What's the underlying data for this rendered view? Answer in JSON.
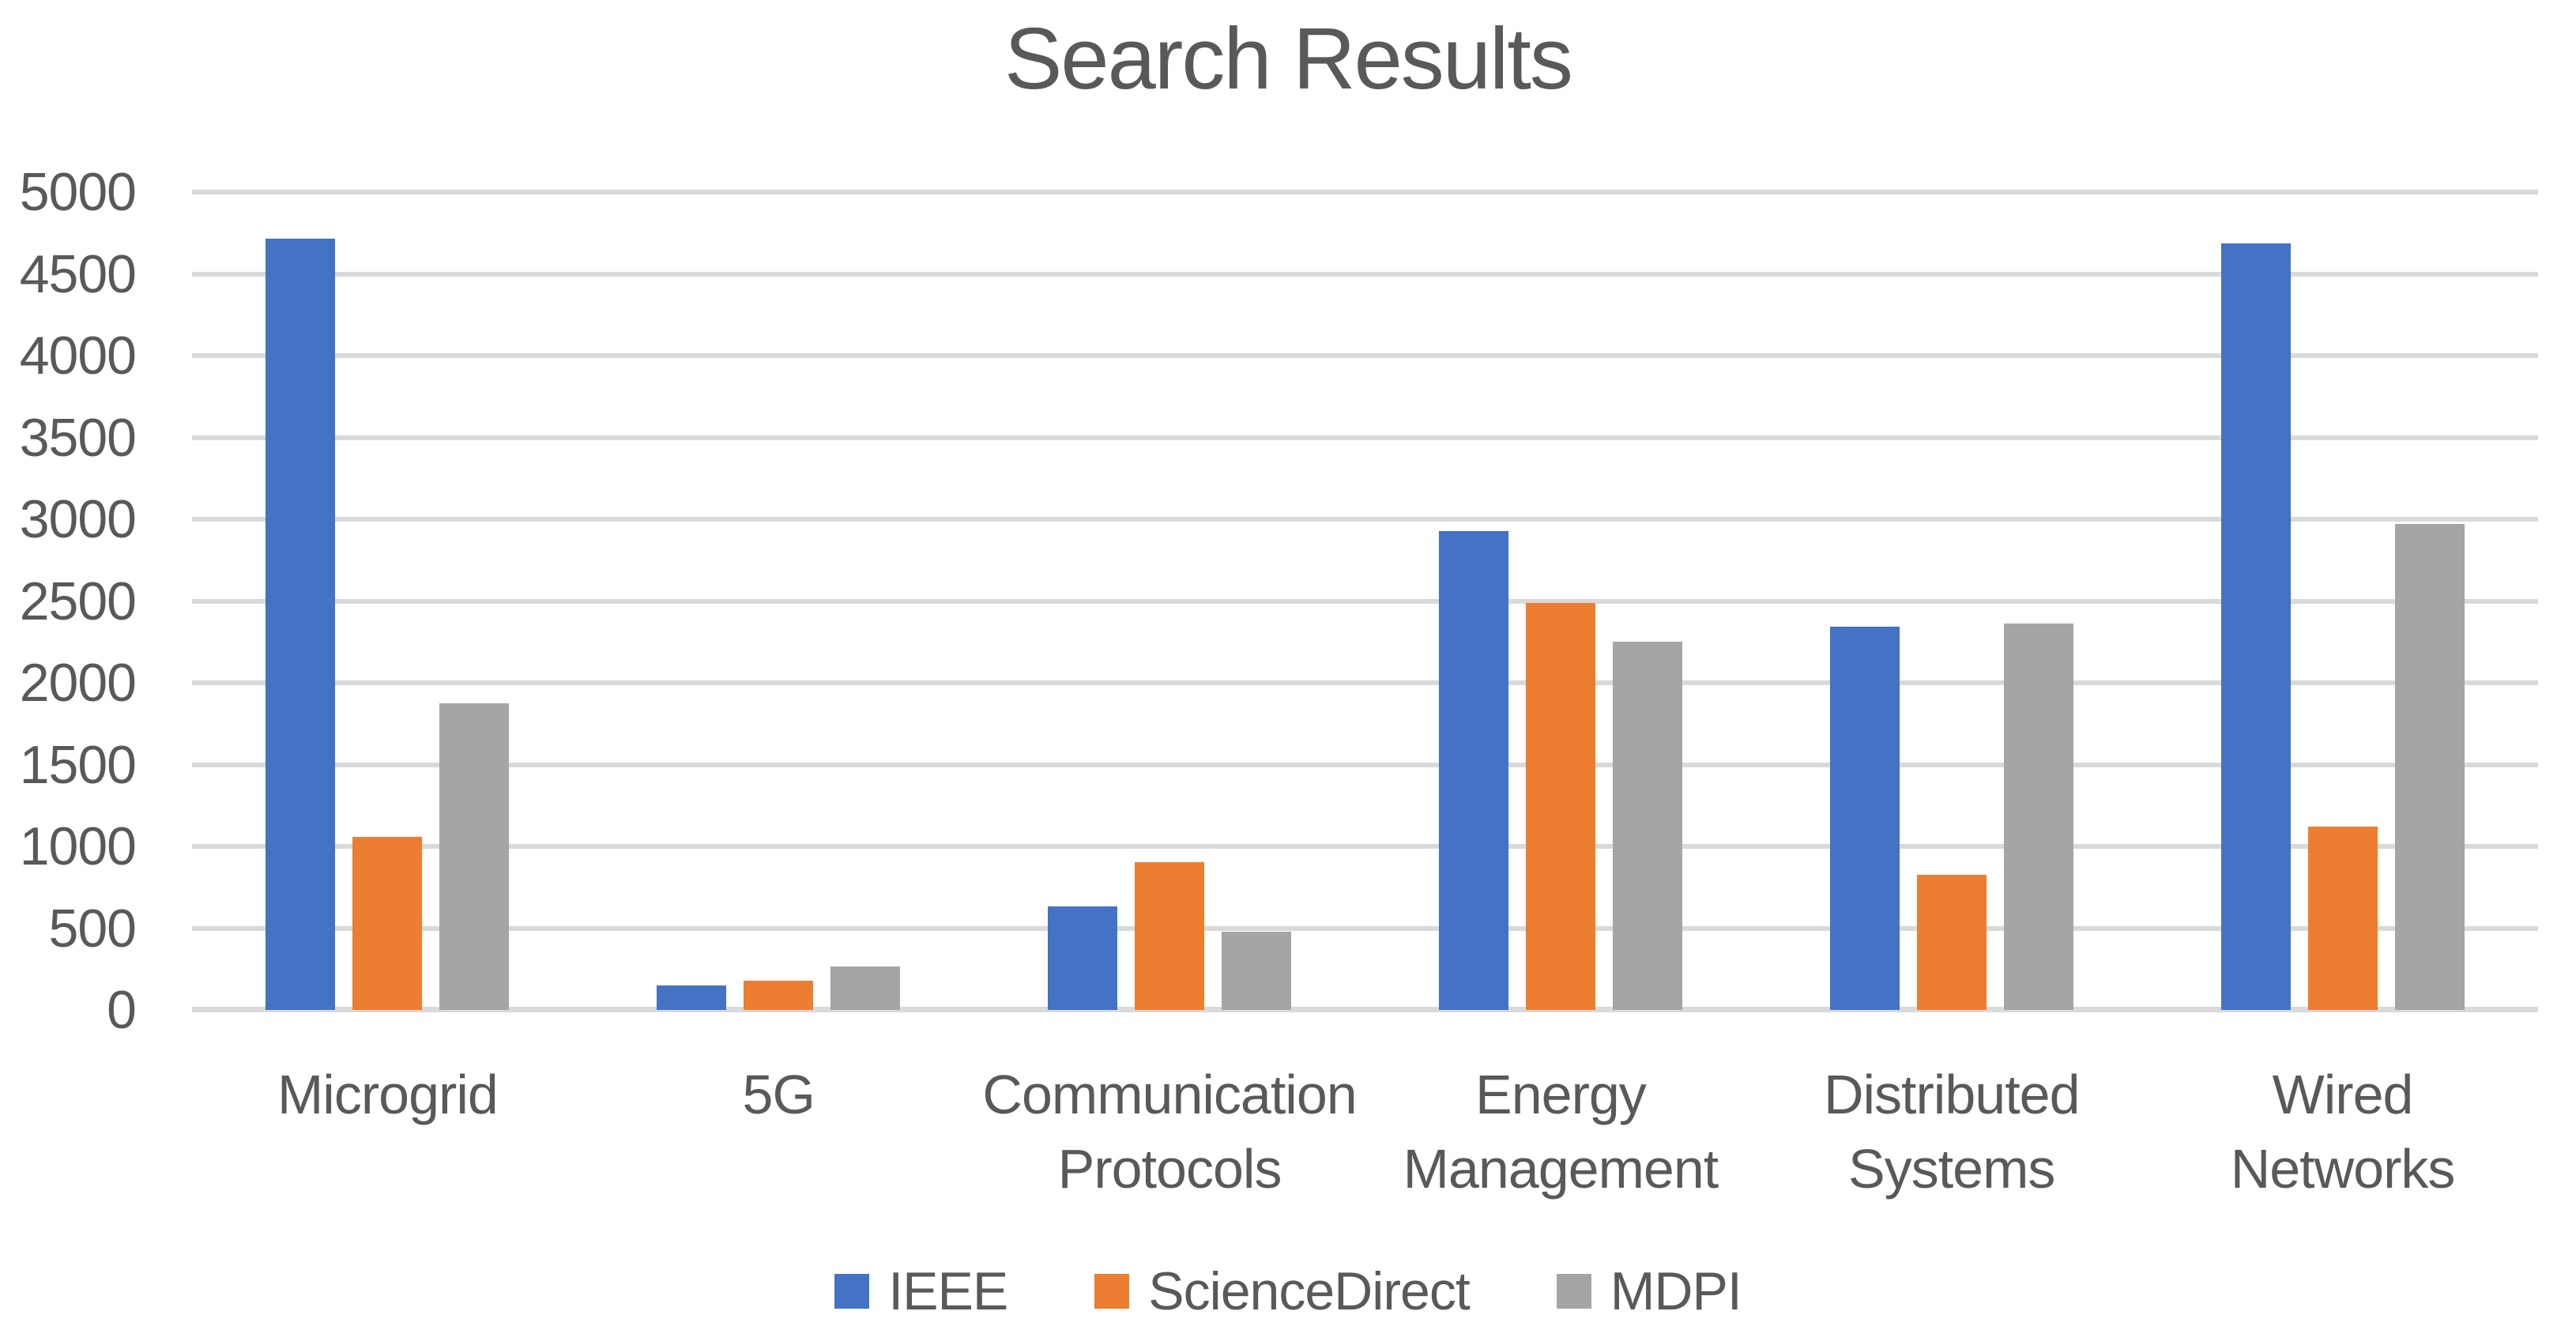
{
  "title": "Search Results",
  "colors": {
    "text": "#595959",
    "gridline": "#D9D9D9",
    "background": "#FFFFFF"
  },
  "chart_data": {
    "type": "bar",
    "title": "Search Results",
    "categories": [
      "Microgrid",
      "5G",
      "Communication Protocols",
      "Energy Management",
      "Distributed Systems",
      "Wired Networks"
    ],
    "series": [
      {
        "name": "IEEE",
        "color": "#4472C4",
        "values": [
          4715,
          150,
          635,
          2930,
          2345,
          4685
        ]
      },
      {
        "name": "ScienceDirect",
        "color": "#ED7D31",
        "values": [
          1060,
          180,
          905,
          2490,
          825,
          1120
        ]
      },
      {
        "name": "MDPI",
        "color": "#A5A5A5",
        "values": [
          1875,
          265,
          480,
          2250,
          2360,
          2970
        ]
      }
    ],
    "xlabel": "",
    "ylabel": "",
    "ylim": [
      0,
      5000
    ],
    "ytick_step": 500,
    "ytick_labels": [
      "0",
      "500",
      "1000",
      "1500",
      "2000",
      "2500",
      "3000",
      "3500",
      "4000",
      "4500",
      "5000"
    ],
    "grid": true,
    "legend_position": "bottom"
  }
}
